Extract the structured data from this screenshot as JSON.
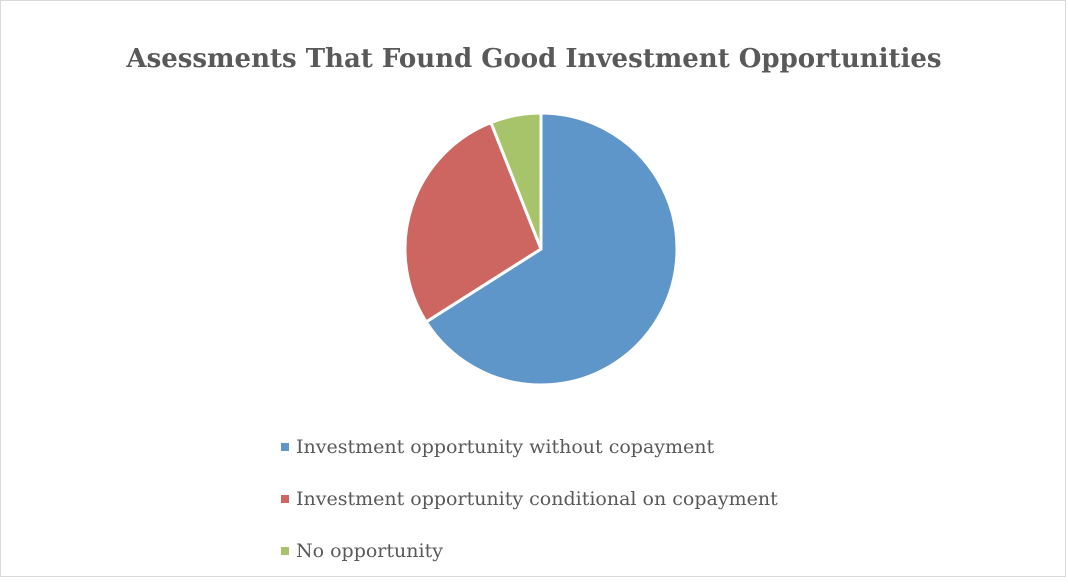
{
  "chart_data": {
    "type": "pie",
    "title": "Asessments That Found Good Investment Opportunities",
    "categories": [
      "Investment opportunity without copayment",
      "Investment opportunity conditional on copayment",
      "No opportunity"
    ],
    "values": [
      66,
      28,
      6
    ],
    "colors": [
      "#5f96c9",
      "#cd6660",
      "#a8c46a"
    ],
    "legend_position": "bottom",
    "start_angle_deg": 0,
    "direction": "clockwise"
  }
}
